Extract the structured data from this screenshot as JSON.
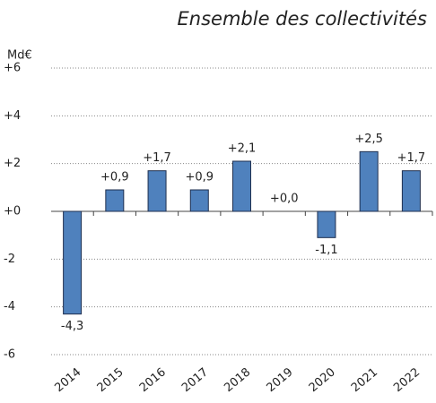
{
  "chart_data": {
    "type": "bar",
    "title": "Ensemble des collectivités",
    "y_label": "Md€",
    "categories": [
      "2014",
      "2015",
      "2016",
      "2017",
      "2018",
      "2019",
      "2020",
      "2021",
      "2022"
    ],
    "values": [
      -4.3,
      0.9,
      1.7,
      0.9,
      2.1,
      0.0,
      -1.1,
      2.5,
      1.7
    ],
    "value_labels": [
      "-4,3",
      "+0,9",
      "+1,7",
      "+0,9",
      "+2,1",
      "+0,0",
      "-1,1",
      "+2,5",
      "+1,7"
    ],
    "color": "#4f81bd",
    "ylim": [
      -6,
      6
    ],
    "yticks": [
      {
        "value": 6,
        "label": "+6"
      },
      {
        "value": 4,
        "label": "+4"
      },
      {
        "value": 2,
        "label": "+2"
      },
      {
        "value": 0,
        "label": "+0"
      },
      -2,
      -4,
      -6
    ],
    "grid": true
  }
}
